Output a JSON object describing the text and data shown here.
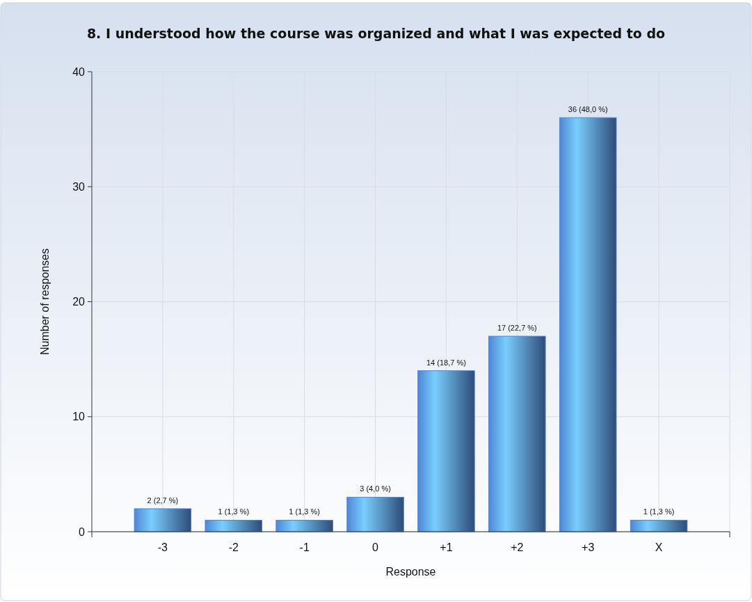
{
  "chart_data": {
    "type": "bar",
    "title": "8. I understood how the course was organized and what I was expected to do",
    "xlabel": "Response",
    "ylabel": "Number of responses",
    "categories": [
      "-3",
      "-2",
      "-1",
      "0",
      "+1",
      "+2",
      "+3",
      "X"
    ],
    "values": [
      2,
      1,
      1,
      3,
      14,
      17,
      36,
      1
    ],
    "value_labels": [
      "2 (2,7 %)",
      "1 (1,3 %)",
      "1 (1,3 %)",
      "3 (4,0 %)",
      "14 (18,7 %)",
      "17 (22,7 %)",
      "36 (48,0 %)",
      "1 (1,3 %)"
    ],
    "color": "#4f86d4",
    "ylim": [
      0,
      40
    ],
    "yticks": [
      0,
      10,
      20,
      30,
      40
    ],
    "grid": true
  }
}
